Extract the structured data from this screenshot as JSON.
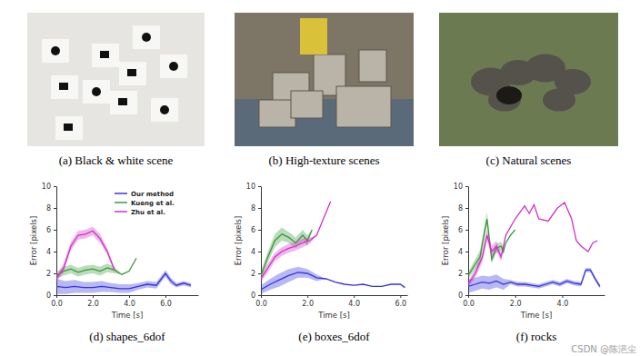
{
  "figure_images": [
    {
      "caption": "(a) Black & white scene"
    },
    {
      "caption": "(b) High-texture scenes"
    },
    {
      "caption": "(c) Natural scenes"
    }
  ],
  "watermark": "CSDN @陈浥尘",
  "chart_data": [
    {
      "type": "line",
      "title": "(d) shapes_6dof",
      "x_label": "Time [s]",
      "y_label": "Error [pixels]",
      "xlim": [
        0,
        7.8
      ],
      "xticks": [
        {
          "value": 0,
          "label": "0.0"
        },
        {
          "value": 2,
          "label": "2.0"
        },
        {
          "value": 4,
          "label": "4.0"
        },
        {
          "value": 6,
          "label": "6.0"
        }
      ],
      "ylim": [
        0,
        10
      ],
      "yticks": [
        0,
        2,
        4,
        6,
        8,
        10
      ],
      "legend": "upper right",
      "series": [
        {
          "name": "Our method",
          "color": "#3434e0",
          "x": [
            0,
            0.5,
            1,
            1.5,
            2,
            2.5,
            3,
            3.5,
            4,
            4.5,
            5,
            5.5,
            6,
            6.3,
            6.6,
            7,
            7.4
          ],
          "values": [
            0.8,
            0.7,
            0.8,
            0.7,
            0.7,
            0.8,
            0.7,
            0.6,
            0.6,
            0.8,
            1.0,
            0.9,
            2.0,
            1.3,
            0.9,
            1.1,
            0.9
          ],
          "error": [
            0.7,
            0.6,
            0.6,
            0.5,
            0.5,
            0.5,
            0.4,
            0.4,
            0.4,
            0.3,
            0.3,
            0.3,
            0.3,
            0.3,
            0.2,
            0.2,
            0.2
          ]
        },
        {
          "name": "Kueng et al.",
          "color": "#3a9a3a",
          "x": [
            0,
            0.4,
            0.8,
            1.2,
            1.6,
            2.0,
            2.4,
            2.8,
            3.2,
            3.6,
            4.0,
            4.4
          ],
          "values": [
            1.8,
            2.2,
            2.4,
            2.1,
            2.3,
            2.4,
            2.2,
            2.5,
            2.3,
            1.9,
            2.2,
            3.4
          ],
          "error": [
            0.3,
            0.4,
            0.4,
            0.4,
            0.4,
            0.4,
            0.4,
            0.4,
            0.3,
            0,
            0,
            0
          ]
        },
        {
          "name": "Zhu et al.",
          "color": "#d030c8",
          "x": [
            0,
            0.4,
            0.8,
            1.2,
            1.6,
            2.0,
            2.4,
            2.8,
            3.2
          ],
          "values": [
            1.5,
            2.5,
            4.5,
            5.5,
            5.6,
            5.9,
            5.2,
            4.0,
            2.3
          ],
          "error": [
            0.3,
            0.4,
            0.4,
            0.4,
            0.4,
            0.4,
            0.4,
            0.3,
            0.2
          ]
        }
      ]
    },
    {
      "type": "line",
      "title": "(e) boxes_6dof",
      "x_label": "Time [s]",
      "y_label": "Error [pixels]",
      "xlim": [
        0,
        6.3
      ],
      "xticks": [
        {
          "value": 0,
          "label": "0.0"
        },
        {
          "value": 2,
          "label": "2.0"
        },
        {
          "value": 4,
          "label": "4.0"
        },
        {
          "value": 6,
          "label": "6.0"
        }
      ],
      "ylim": [
        0,
        10
      ],
      "yticks": [
        0,
        2,
        4,
        6,
        8,
        10
      ],
      "series": [
        {
          "color": "#3434e0",
          "x": [
            0,
            0.4,
            0.8,
            1.2,
            1.6,
            2.0,
            2.4,
            2.8,
            3.2,
            3.6,
            4.0,
            4.4,
            4.8,
            5.2,
            5.6,
            6.0,
            6.2
          ],
          "values": [
            0.5,
            1.0,
            1.4,
            1.8,
            2.1,
            2.0,
            1.6,
            1.5,
            1.2,
            1.0,
            0.9,
            1.0,
            0.8,
            0.8,
            1.0,
            1.0,
            0.7
          ],
          "error": [
            0.4,
            0.5,
            0.6,
            0.6,
            0.5,
            0.4,
            0.3,
            0,
            0,
            0,
            0,
            0,
            0,
            0,
            0,
            0,
            0
          ]
        },
        {
          "color": "#3a9a3a",
          "x": [
            0,
            0.3,
            0.6,
            0.9,
            1.2,
            1.5,
            1.8,
            2.0,
            2.2
          ],
          "values": [
            1.8,
            3.5,
            5.0,
            5.6,
            5.3,
            4.8,
            5.5,
            5.0,
            6.0
          ],
          "error": [
            0.4,
            0.5,
            0.6,
            0.6,
            0.5,
            0.5,
            0.5,
            0.5,
            0
          ]
        },
        {
          "color": "#d030c8",
          "x": [
            0,
            0.3,
            0.6,
            0.9,
            1.2,
            1.5,
            1.8,
            2.1,
            2.4,
            3.0
          ],
          "values": [
            1.5,
            2.5,
            3.5,
            4.0,
            4.3,
            4.5,
            4.8,
            5.0,
            5.5,
            8.6
          ],
          "error": [
            0.3,
            0.4,
            0.4,
            0.4,
            0.4,
            0.4,
            0.4,
            0.3,
            0,
            0
          ]
        }
      ]
    },
    {
      "type": "line",
      "title": "(f) rocks",
      "x_label": "Time [s]",
      "y_label": "Error [pixels]",
      "xlim": [
        0,
        5.8
      ],
      "xticks": [
        {
          "value": 0,
          "label": "0.0"
        },
        {
          "value": 2,
          "label": "2.0"
        },
        {
          "value": 4,
          "label": "4.0"
        }
      ],
      "ylim": [
        0,
        10
      ],
      "yticks": [
        0,
        2,
        4,
        6,
        8,
        10
      ],
      "series": [
        {
          "color": "#3434e0",
          "x": [
            0,
            0.3,
            0.6,
            0.9,
            1.2,
            1.5,
            1.8,
            2.1,
            2.4,
            2.7,
            3.0,
            3.3,
            3.6,
            3.9,
            4.2,
            4.5,
            4.8,
            5.0,
            5.2,
            5.4,
            5.6
          ],
          "values": [
            0.8,
            1.0,
            1.2,
            1.1,
            1.3,
            1.0,
            1.2,
            1.0,
            1.0,
            0.9,
            0.8,
            1.0,
            1.2,
            1.0,
            1.3,
            1.1,
            1.0,
            2.3,
            2.3,
            1.5,
            0.8
          ],
          "error": [
            0.6,
            0.6,
            0.6,
            0.6,
            0.6,
            0.5,
            0.2,
            0.2,
            0.2,
            0.2,
            0.2,
            0.2,
            0.2,
            0.2,
            0.2,
            0.2,
            0.2,
            0.2,
            0.2,
            0.2,
            0.2
          ]
        },
        {
          "color": "#3a9a3a",
          "x": [
            0,
            0.2,
            0.5,
            0.8,
            1.0,
            1.2,
            1.4,
            1.5,
            1.6,
            1.8,
            2.0
          ],
          "values": [
            1.8,
            2.5,
            3.5,
            7.0,
            3.3,
            4.3,
            4.5,
            4.0,
            4.8,
            5.5,
            6.0
          ],
          "error": [
            0.3,
            0.4,
            0.6,
            0.6,
            0.4,
            0.4,
            0.4,
            0.3,
            0,
            0,
            0
          ]
        },
        {
          "color": "#d030c8",
          "x": [
            0,
            0.3,
            0.6,
            0.8,
            1.0,
            1.2,
            1.4,
            1.6,
            2.0,
            2.4,
            2.6,
            2.8,
            3.0,
            3.4,
            3.8,
            4.1,
            4.4,
            4.6,
            4.8,
            5.1,
            5.3,
            5.5
          ],
          "values": [
            1.0,
            2.0,
            3.5,
            5.5,
            4.0,
            4.5,
            3.5,
            5.5,
            7.0,
            8.2,
            7.5,
            8.3,
            7.0,
            6.8,
            8.0,
            8.5,
            7.0,
            5.0,
            4.5,
            4.0,
            4.8,
            5.0
          ],
          "error": [
            0.3,
            0.4,
            0.5,
            0.5,
            0.5,
            0.5,
            0.4,
            0,
            0,
            0,
            0,
            0,
            0,
            0,
            0,
            0,
            0,
            0,
            0,
            0,
            0,
            0
          ]
        }
      ]
    }
  ]
}
